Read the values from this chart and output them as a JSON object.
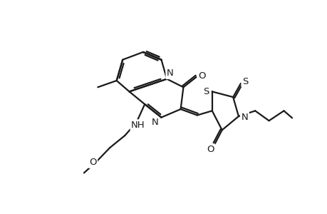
{
  "bg": "#ffffff",
  "lc": "#1a1a1a",
  "lw": 1.6,
  "fig_w": 4.6,
  "fig_h": 3.0,
  "dpi": 100
}
